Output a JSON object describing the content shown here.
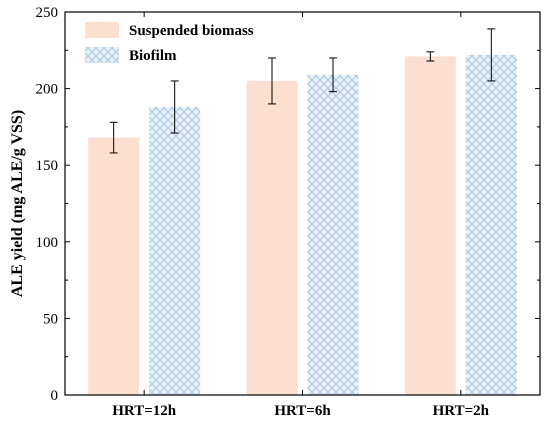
{
  "chart_data": {
    "type": "bar",
    "title": "",
    "xlabel": "",
    "ylabel": "ALE yield (mg ALE/g VSS)",
    "categories": [
      "HRT=12h",
      "HRT=6h",
      "HRT=2h"
    ],
    "ylim": [
      0,
      250
    ],
    "yticks": [
      0,
      50,
      100,
      150,
      200,
      250
    ],
    "grid": false,
    "legend_position": "top-left",
    "series": [
      {
        "name": "Suspended biomass",
        "color": "#fbe0d2",
        "pattern": "solid",
        "values": [
          168,
          205,
          221
        ],
        "errors": [
          10,
          15,
          3
        ]
      },
      {
        "name": "Biofilm",
        "color": "#d6e6f4",
        "pattern": "crosshatch",
        "values": [
          188,
          209,
          222
        ],
        "errors": [
          17,
          11,
          17
        ]
      }
    ]
  }
}
